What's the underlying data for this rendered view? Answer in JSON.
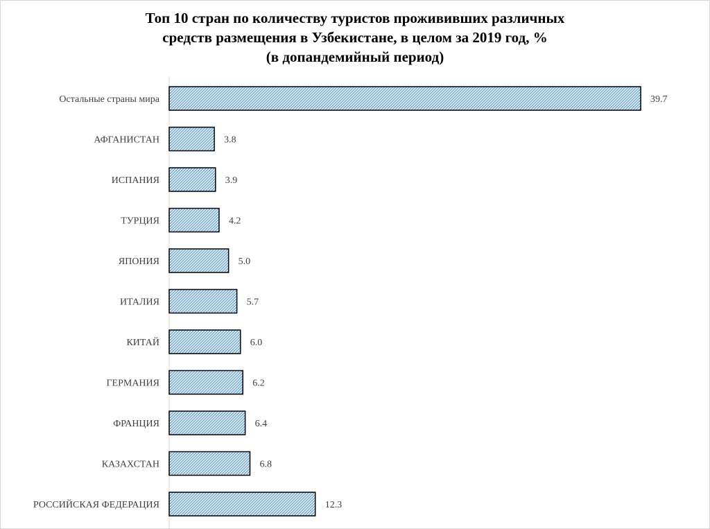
{
  "chart_data": {
    "type": "bar",
    "orientation": "horizontal",
    "title_lines": [
      "Топ 10 стран по количеству туристов прожививших различных",
      "средств размещения в Узбекистане, в целом за 2019 год, %",
      "(в допандемийный период)"
    ],
    "categories": [
      "Остальные страны мира",
      "АФГАНИСТАН",
      "ИСПАНИЯ",
      "ТУРЦИЯ",
      "ЯПОНИЯ",
      "ИТАЛИЯ",
      "КИТАЙ",
      "ГЕРМАНИЯ",
      "ФРАНЦИЯ",
      "КАЗАХСТАН",
      "РОССИЙСКАЯ ФЕДЕРАЦИЯ"
    ],
    "values": [
      39.7,
      3.8,
      3.9,
      4.2,
      5.0,
      5.7,
      6.0,
      6.2,
      6.4,
      6.8,
      12.3
    ],
    "value_labels": [
      "39.7",
      "3.8",
      "3.9",
      "4.2",
      "5.0",
      "5.7",
      "6.0",
      "6.2",
      "6.4",
      "6.8",
      "12.3"
    ],
    "xlim": [
      0,
      40
    ],
    "grid": false,
    "legend": "none",
    "bar_pattern": "blue-white hatch",
    "colors": {
      "bar_fill": "#9dc3e6",
      "bar_stroke": "#000000",
      "axis": "#d9d9d9",
      "text": "#404040"
    }
  }
}
